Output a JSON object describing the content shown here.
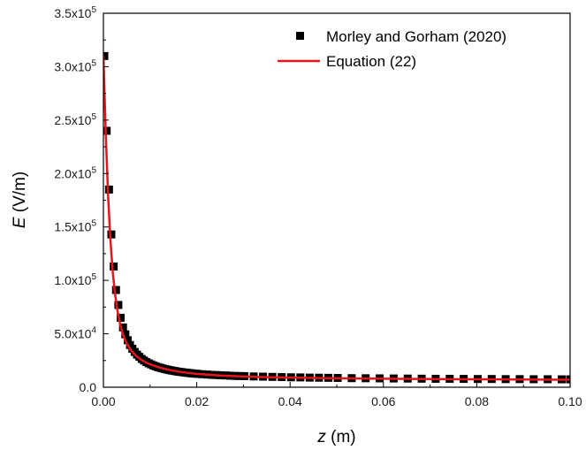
{
  "chart_data": {
    "type": "scatter",
    "xlabel_var": "z",
    "xlabel_unit": " (m)",
    "ylabel_var": "E",
    "ylabel_unit": " (V/m)",
    "xlim": [
      0,
      0.1
    ],
    "ylim": [
      0,
      350000
    ],
    "x_ticks": [
      0,
      0.02,
      0.04,
      0.06,
      0.08,
      0.1
    ],
    "x_tick_labels": [
      "0.00",
      "0.02",
      "0.04",
      "0.06",
      "0.08",
      "0.10"
    ],
    "y_ticks": [
      {
        "value": 0,
        "mant": "0.0",
        "exp": ""
      },
      {
        "value": 50000,
        "mant": "5.0x10",
        "exp": "4"
      },
      {
        "value": 100000,
        "mant": "1.0x10",
        "exp": "5"
      },
      {
        "value": 150000,
        "mant": "1.5x10",
        "exp": "5"
      },
      {
        "value": 200000,
        "mant": "2.0x10",
        "exp": "5"
      },
      {
        "value": 250000,
        "mant": "2.5x10",
        "exp": "5"
      },
      {
        "value": 300000,
        "mant": "3.0x10",
        "exp": "5"
      },
      {
        "value": 350000,
        "mant": "3.5x10",
        "exp": "5"
      }
    ],
    "legend_position": "top-right",
    "series": [
      {
        "name": "Morley and Gorham (2020)",
        "kind": "scatter",
        "marker": "square",
        "color": "#000000",
        "x": [
          0.0002,
          0.0007,
          0.0012,
          0.0017,
          0.0022,
          0.0027,
          0.0032,
          0.0037,
          0.0042,
          0.0047,
          0.0052,
          0.0057,
          0.0062,
          0.0067,
          0.0072,
          0.0077,
          0.0082,
          0.0087,
          0.0092,
          0.0097,
          0.0102,
          0.0107,
          0.0112,
          0.0117,
          0.0122,
          0.0127,
          0.0132,
          0.0137,
          0.0142,
          0.0147,
          0.0152,
          0.0157,
          0.0162,
          0.0167,
          0.0172,
          0.0177,
          0.0182,
          0.0187,
          0.0192,
          0.0197,
          0.0202,
          0.0212,
          0.0222,
          0.0232,
          0.0242,
          0.0252,
          0.0262,
          0.0272,
          0.0282,
          0.0292,
          0.0302,
          0.0322,
          0.0342,
          0.0362,
          0.0382,
          0.0402,
          0.0422,
          0.0442,
          0.0462,
          0.0482,
          0.0502,
          0.0532,
          0.0562,
          0.0592,
          0.0622,
          0.0652,
          0.0682,
          0.0712,
          0.0742,
          0.0772,
          0.0802,
          0.0832,
          0.0862,
          0.0892,
          0.0922,
          0.0952,
          0.0982,
          0.1
        ],
        "y": [
          310000,
          240000,
          185000,
          143000,
          113000,
          91000,
          77000,
          65000,
          56000,
          49500,
          44000,
          39500,
          36000,
          33000,
          30500,
          28500,
          26500,
          25000,
          23600,
          22400,
          21400,
          20400,
          19600,
          18800,
          18200,
          17600,
          17000,
          16500,
          16000,
          15600,
          15200,
          14800,
          14500,
          14200,
          13900,
          13600,
          13400,
          13100,
          12900,
          12700,
          12500,
          12200,
          11900,
          11600,
          11400,
          11200,
          11000,
          10800,
          10600,
          10500,
          10400,
          10100,
          9900,
          9700,
          9500,
          9300,
          9200,
          9000,
          8900,
          8800,
          8700,
          8500,
          8400,
          8300,
          8200,
          8100,
          8000,
          7900,
          7900,
          7800,
          7700,
          7700,
          7600,
          7600,
          7500,
          7500,
          7400,
          7400
        ]
      },
      {
        "name": "Equation (22)",
        "kind": "line",
        "color": "#e8141c",
        "x": [
          0,
          0.0005,
          0.001,
          0.0015,
          0.002,
          0.0025,
          0.003,
          0.0035,
          0.004,
          0.0045,
          0.005,
          0.006,
          0.007,
          0.008,
          0.009,
          0.01,
          0.012,
          0.014,
          0.016,
          0.018,
          0.02,
          0.025,
          0.03,
          0.035,
          0.04,
          0.05,
          0.06,
          0.07,
          0.08,
          0.09,
          0.1
        ],
        "y": [
          310000,
          238000,
          180000,
          138000,
          108000,
          87000,
          72000,
          61000,
          52000,
          46000,
          41000,
          34000,
          29500,
          26000,
          23500,
          21500,
          18500,
          16300,
          14700,
          13500,
          12500,
          11000,
          10000,
          9400,
          9000,
          8400,
          8000,
          7700,
          7400,
          7200,
          7000
        ]
      }
    ]
  }
}
